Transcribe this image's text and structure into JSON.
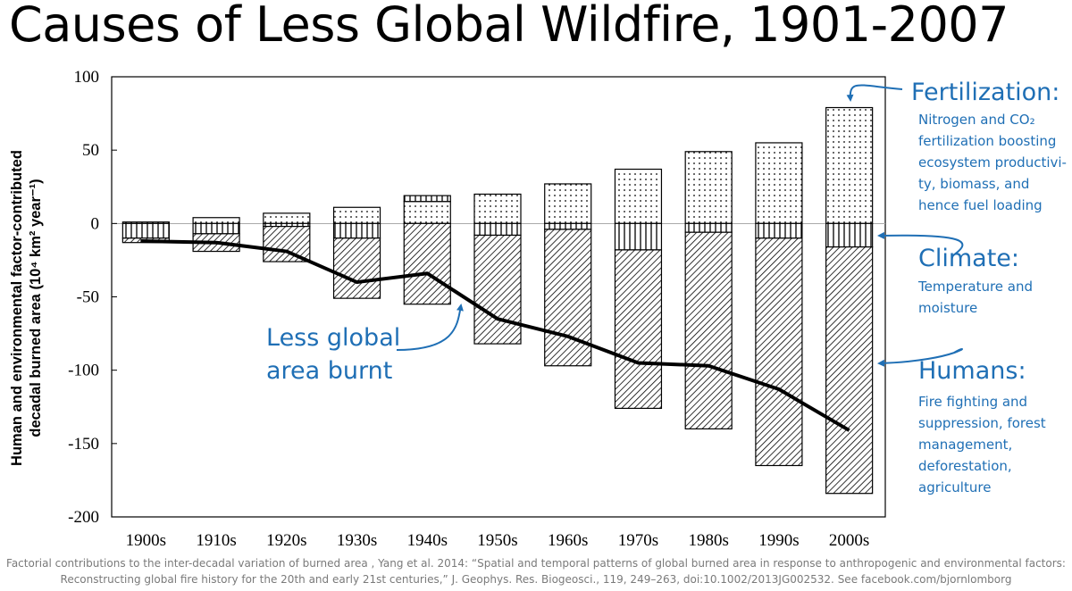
{
  "title": "Causes of Less Global Wildfire, 1901-2007",
  "annotations": {
    "fertilization": {
      "head": "Fertilization:",
      "lines": [
        "Nitrogen and CO₂",
        "fertilization boosting",
        "ecosystem productivi-",
        "ty, biomass, and",
        "hence fuel loading"
      ]
    },
    "climate": {
      "head": "Climate:",
      "lines": [
        "Temperature and",
        "moisture"
      ]
    },
    "humans": {
      "head": "Humans:",
      "lines": [
        "Fire fighting and",
        "suppression, forest",
        "management,",
        "deforestation,",
        "agriculture"
      ]
    },
    "less_global": [
      "Less global",
      "area burnt"
    ]
  },
  "caption": {
    "line1": "Factorial contributions to the inter-decadal variation of burned area , Yang et al. 2014: “Spatial and temporal patterns of global burned area in response to anthropogenic and environmental factors:",
    "line2": "Reconstructing global fire history for the 20th and early 21st centuries,” J. Geophys. Res. Biogeosci., 119, 249–263, doi:10.1002/2013JG002532. See facebook.com/bjornlomborg"
  },
  "colors": {
    "accent": "#1f6fb5",
    "line": "#000000",
    "caption": "#7a7a7a"
  },
  "chart_data": {
    "type": "bar",
    "stacked": true,
    "title": "Causes of Less Global Wildfire, 1901-2007",
    "ylabel_lines": [
      "Human and environmental factor-contributed",
      "decadal burned area (10⁴ km² year⁻¹)"
    ],
    "xlabel": "",
    "ylim": [
      -200,
      100
    ],
    "yticks": [
      100,
      50,
      0,
      -50,
      -100,
      -150,
      -200
    ],
    "categories": [
      "1900s",
      "1910s",
      "1920s",
      "1930s",
      "1940s",
      "1950s",
      "1960s",
      "1970s",
      "1980s",
      "1990s",
      "2000s"
    ],
    "series": [
      {
        "name": "Fertilization",
        "pattern": "dots",
        "values": [
          1,
          4,
          7,
          11,
          15,
          20,
          27,
          37,
          49,
          55,
          79
        ]
      },
      {
        "name": "Climate",
        "pattern": "vertical",
        "values": [
          -10,
          -7,
          -2,
          -10,
          4,
          -8,
          -4,
          -18,
          -6,
          -10,
          -16
        ]
      },
      {
        "name": "Humans",
        "pattern": "diagonal",
        "values": [
          -3,
          -12,
          -24,
          -41,
          -55,
          -74,
          -93,
          -108,
          -134,
          -155,
          -168
        ]
      }
    ],
    "net_line": {
      "name": "Less global area burnt",
      "values": [
        -12,
        -13,
        -19,
        -40,
        -34,
        -65,
        -77,
        -95,
        -97,
        -113,
        -141
      ]
    }
  }
}
